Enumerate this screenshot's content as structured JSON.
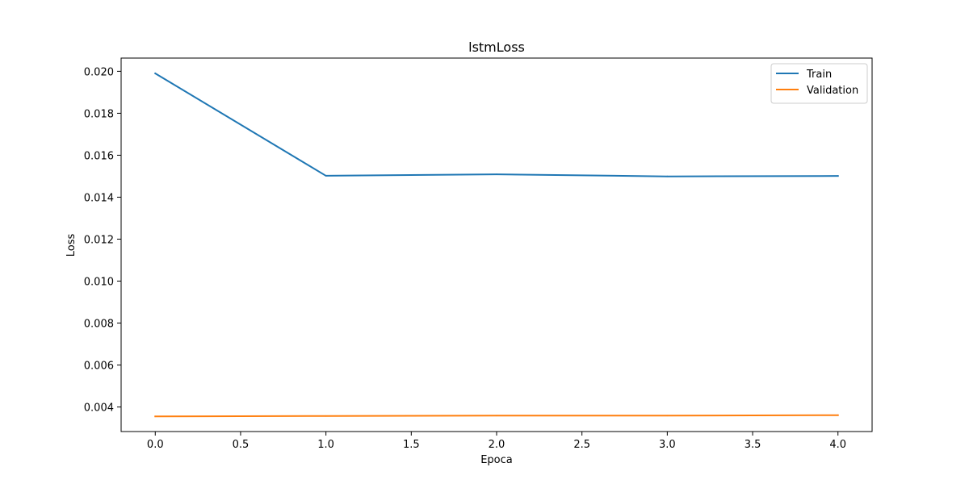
{
  "chart_data": {
    "type": "line",
    "title": "lstmLoss",
    "xlabel": "Epoca",
    "ylabel": "Loss",
    "x": [
      0,
      1,
      2,
      3,
      4
    ],
    "xlim": [
      -0.2,
      4.2
    ],
    "ylim": [
      0.00283,
      0.02063
    ],
    "x_ticks": [
      0.0,
      0.5,
      1.0,
      1.5,
      2.0,
      2.5,
      3.0,
      3.5,
      4.0
    ],
    "x_tick_labels": [
      "0.0",
      "0.5",
      "1.0",
      "1.5",
      "2.0",
      "2.5",
      "3.0",
      "3.5",
      "4.0"
    ],
    "y_ticks": [
      0.004,
      0.006,
      0.008,
      0.01,
      0.012,
      0.014,
      0.016,
      0.018,
      0.02
    ],
    "y_tick_labels": [
      "0.004",
      "0.006",
      "0.008",
      "0.010",
      "0.012",
      "0.014",
      "0.016",
      "0.018",
      "0.020"
    ],
    "series": [
      {
        "name": "Train",
        "color": "#1f77b4",
        "values": [
          0.0199,
          0.01502,
          0.01509,
          0.01499,
          0.01501
        ]
      },
      {
        "name": "Validation",
        "color": "#ff7f0e",
        "values": [
          0.00355,
          0.00357,
          0.00359,
          0.00359,
          0.00361
        ]
      }
    ],
    "grid": false,
    "legend_position": "top-right"
  }
}
